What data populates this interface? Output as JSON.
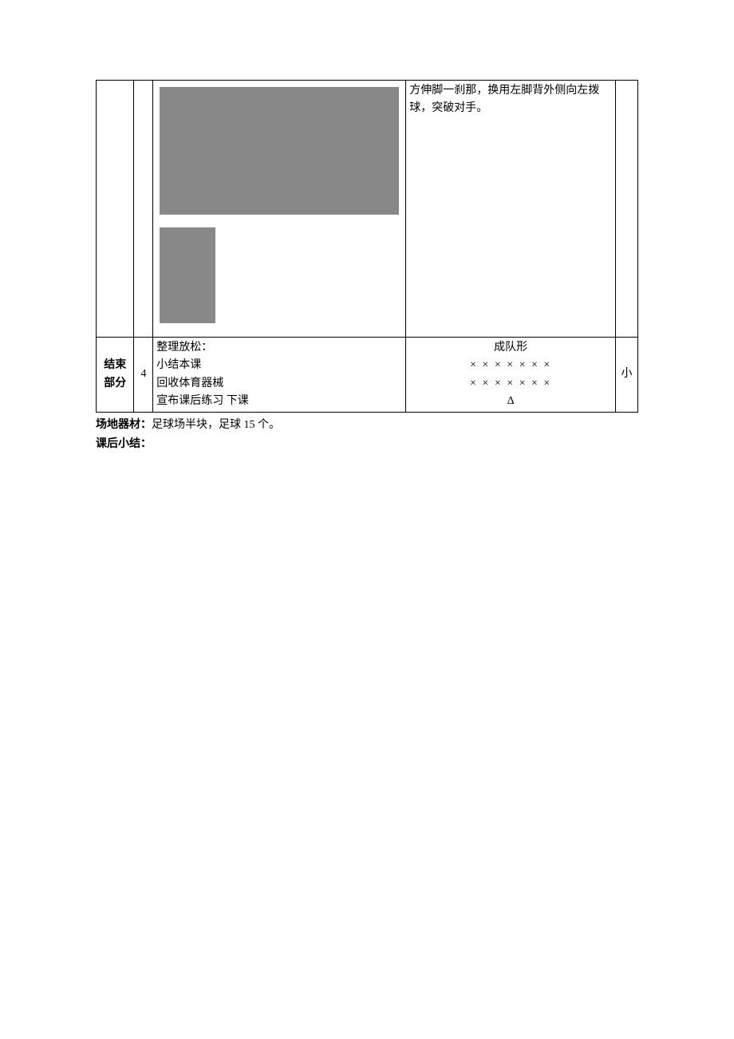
{
  "table": {
    "row1": {
      "section": "",
      "time": "",
      "content": "",
      "formation_text": "方伸脚一刹那，换用左脚背外侧向左拨球，突破对手。",
      "intensity": ""
    },
    "row2": {
      "section": "结束部分",
      "time": "4",
      "content_lines": [
        "整理放松：",
        "小结本课",
        "回收体育器械",
        "宣布课后练习  下课"
      ],
      "formation": {
        "title": "成队形",
        "rows": [
          "×  ×  ×  ×  ×  ×  ×",
          "×  ×  ×  ×  ×  ×  ×",
          "Δ"
        ]
      },
      "intensity": "小"
    }
  },
  "footer": {
    "equipment_label": "场地器材：",
    "equipment_text": "足球场半块，足球 15 个。",
    "summary_label": "课后小结：",
    "summary_text": ""
  },
  "images": {
    "large_alt": "soccer dribbling illustration sequence",
    "small_alt": "soccer player with ball"
  }
}
